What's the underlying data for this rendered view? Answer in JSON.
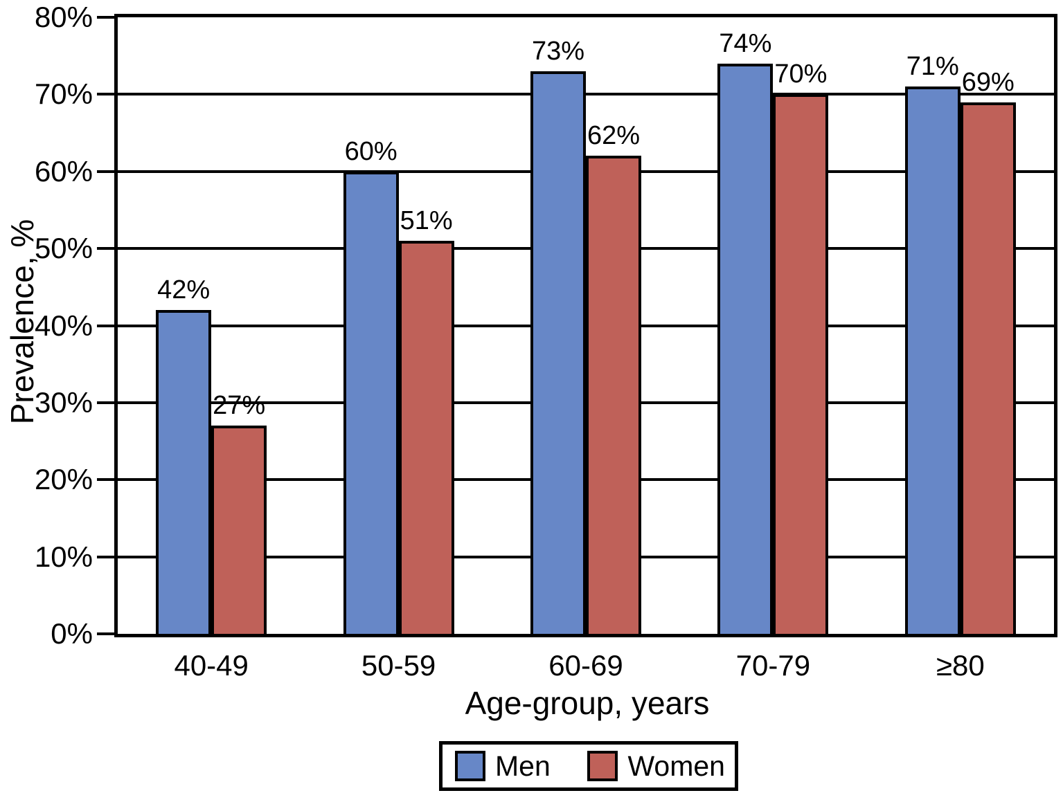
{
  "chart_data": {
    "type": "bar",
    "title": "",
    "categories": [
      "40-49",
      "50-59",
      "60-69",
      "70-79",
      "≥80"
    ],
    "series": [
      {
        "name": "Men",
        "color": "#6787c7",
        "values": [
          42,
          60,
          73,
          74,
          71
        ],
        "labels": [
          "42%",
          "60%",
          "73%",
          "74%",
          "71%"
        ]
      },
      {
        "name": "Women",
        "color": "#bf6159",
        "values": [
          27,
          51,
          62,
          70,
          69
        ],
        "labels": [
          "27%",
          "51%",
          "62%",
          "70%",
          "69%"
        ]
      }
    ],
    "xlabel": "Age-group, years",
    "ylabel": "Prevalence, %",
    "ylim": [
      0,
      80
    ],
    "yticks": [
      {
        "value": 0,
        "label": "0%"
      },
      {
        "value": 10,
        "label": "10%"
      },
      {
        "value": 20,
        "label": "20%"
      },
      {
        "value": 30,
        "label": "30%"
      },
      {
        "value": 40,
        "label": "40%"
      },
      {
        "value": 50,
        "label": "50%"
      },
      {
        "value": 60,
        "label": "60%"
      },
      {
        "value": 70,
        "label": "70%"
      },
      {
        "value": 80,
        "label": "80%"
      }
    ],
    "grid": "horizontal",
    "legend_position": "bottom",
    "axis_color": "#000000",
    "background_color": "#ffffff"
  }
}
